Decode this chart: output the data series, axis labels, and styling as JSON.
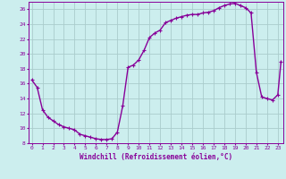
{
  "x": [
    0,
    0.5,
    1,
    1.5,
    2,
    2.5,
    3,
    3.5,
    4,
    4.5,
    5,
    5.5,
    6,
    6.5,
    7,
    7.5,
    8,
    8.5,
    9,
    9.5,
    10,
    10.5,
    11,
    11.5,
    12,
    12.5,
    13,
    13.5,
    14,
    14.5,
    15,
    15.5,
    16,
    16.5,
    17,
    17.5,
    18,
    18.5,
    19,
    19.5,
    20,
    20.5,
    21,
    21.5,
    22,
    22.5,
    23,
    23.3
  ],
  "y": [
    16.5,
    15.5,
    12.5,
    11.5,
    11.0,
    10.5,
    10.2,
    10.0,
    9.8,
    9.2,
    9.0,
    8.8,
    8.6,
    8.5,
    8.5,
    8.6,
    9.5,
    13.0,
    18.2,
    18.5,
    19.2,
    20.5,
    22.2,
    22.8,
    23.2,
    24.2,
    24.5,
    24.8,
    25.0,
    25.2,
    25.3,
    25.3,
    25.5,
    25.6,
    25.8,
    26.2,
    26.5,
    26.7,
    26.8,
    26.5,
    26.2,
    25.5,
    17.5,
    14.2,
    14.0,
    13.8,
    14.5,
    19.0
  ],
  "xlabel": "Windchill (Refroidissement éolien,°C)",
  "ylim": [
    8,
    27
  ],
  "xlim": [
    -0.3,
    23.5
  ],
  "yticks": [
    8,
    10,
    12,
    14,
    16,
    18,
    20,
    22,
    24,
    26
  ],
  "xticks": [
    0,
    1,
    2,
    3,
    4,
    5,
    6,
    7,
    8,
    9,
    10,
    11,
    12,
    13,
    14,
    15,
    16,
    17,
    18,
    19,
    20,
    21,
    22,
    23
  ],
  "line_color": "#880099",
  "marker": "+",
  "bg_color": "#cceeee",
  "grid_color": "#aacccc",
  "tick_label_color": "#880099",
  "xlabel_color": "#880099",
  "marker_size": 3,
  "line_width": 1.0
}
